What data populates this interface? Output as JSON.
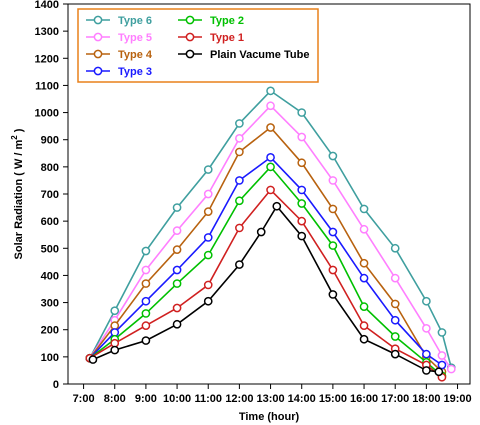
{
  "chart_data": {
    "type": "line",
    "xlabel": "Time (hour)",
    "ylabel_main": "Solar Radiation  ( W / m",
    "ylabel_sup": "2",
    "ylabel_end": " )",
    "xlim": [
      6.5,
      19.4
    ],
    "ylim": [
      0,
      1400
    ],
    "x_ticks": [
      7,
      8,
      9,
      10,
      11,
      12,
      13,
      14,
      15,
      16,
      17,
      18,
      19
    ],
    "x_tick_labels": [
      "7:00",
      "8:00",
      "9:00",
      "10:00",
      "11:00",
      "12:00",
      "13:00",
      "14:00",
      "15:00",
      "16:00",
      "17:00",
      "18:00",
      "19:00"
    ],
    "y_ticks": [
      0,
      100,
      200,
      300,
      400,
      500,
      600,
      700,
      800,
      900,
      1000,
      1100,
      1200,
      1300,
      1400
    ],
    "y_tick_labels": [
      "0",
      "100",
      "200",
      "300",
      "400",
      "500",
      "600",
      "700",
      "800",
      "900",
      "1000",
      "1100",
      "1200",
      "1300",
      "1400"
    ],
    "legend": {
      "placement": "top-left",
      "items": [
        {
          "label": "Type 6",
          "color": "#3f9f9f",
          "text_color": "#3f9f9f"
        },
        {
          "label": "Type 2",
          "color": "#00c000",
          "text_color": "#00c000"
        },
        {
          "label": "Type 5",
          "color": "#ff7fff",
          "text_color": "#ff7fff"
        },
        {
          "label": "Type 1",
          "color": "#d02020",
          "text_color": "#d02020"
        },
        {
          "label": "Type 4",
          "color": "#b8620f",
          "text_color": "#b8620f"
        },
        {
          "label": "Plain Vacume Tube",
          "color": "#000000",
          "text_color": "#000000"
        },
        {
          "label": "Type 3",
          "color": "#1a1aff",
          "text_color": "#1a1aff"
        }
      ]
    },
    "series": [
      {
        "name": "Type 6",
        "color": "#3f9f9f",
        "x": [
          7.2,
          8.0,
          9.0,
          10.0,
          11.0,
          12.0,
          13.0,
          14.0,
          15.0,
          16.0,
          17.0,
          18.0,
          18.5,
          18.8
        ],
        "y": [
          95,
          270,
          490,
          650,
          790,
          960,
          1080,
          1000,
          840,
          645,
          500,
          305,
          190,
          60
        ]
      },
      {
        "name": "Type 5",
        "color": "#ff7fff",
        "x": [
          7.2,
          8.0,
          9.0,
          10.0,
          11.0,
          12.0,
          13.0,
          14.0,
          15.0,
          16.0,
          17.0,
          18.0,
          18.5,
          18.8
        ],
        "y": [
          95,
          235,
          420,
          565,
          700,
          905,
          1025,
          910,
          750,
          570,
          390,
          205,
          105,
          55
        ]
      },
      {
        "name": "Type 4",
        "color": "#b8620f",
        "x": [
          7.2,
          8.0,
          9.0,
          10.0,
          11.0,
          12.0,
          13.0,
          14.0,
          15.0,
          16.0,
          17.0,
          18.0,
          18.5
        ],
        "y": [
          95,
          215,
          370,
          495,
          635,
          855,
          945,
          815,
          645,
          445,
          295,
          100,
          45
        ]
      },
      {
        "name": "Type 3",
        "color": "#1a1aff",
        "x": [
          7.2,
          8.0,
          9.0,
          10.0,
          11.0,
          12.0,
          13.0,
          14.0,
          15.0,
          16.0,
          17.0,
          18.0,
          18.5
        ],
        "y": [
          95,
          190,
          305,
          420,
          540,
          750,
          835,
          715,
          560,
          390,
          235,
          110,
          70
        ]
      },
      {
        "name": "Type 2",
        "color": "#00c000",
        "x": [
          7.2,
          8.0,
          9.0,
          10.0,
          11.0,
          12.0,
          13.0,
          14.0,
          15.0,
          16.0,
          17.0,
          18.0,
          18.5
        ],
        "y": [
          95,
          165,
          260,
          370,
          475,
          675,
          800,
          665,
          510,
          285,
          175,
          80,
          30
        ]
      },
      {
        "name": "Type 1",
        "color": "#d02020",
        "x": [
          7.2,
          8.0,
          9.0,
          10.0,
          11.0,
          12.0,
          13.0,
          14.0,
          15.0,
          16.0,
          17.0,
          18.0,
          18.5
        ],
        "y": [
          95,
          150,
          215,
          280,
          365,
          575,
          715,
          600,
          420,
          215,
          130,
          70,
          25
        ]
      },
      {
        "name": "Plain Vacume Tube",
        "color": "#000000",
        "x": [
          7.3,
          8.0,
          9.0,
          10.0,
          11.0,
          12.0,
          12.7,
          13.2,
          14.0,
          15.0,
          16.0,
          17.0,
          18.0,
          18.4
        ],
        "y": [
          90,
          125,
          160,
          220,
          305,
          440,
          560,
          655,
          545,
          330,
          165,
          110,
          50,
          45
        ]
      }
    ]
  }
}
